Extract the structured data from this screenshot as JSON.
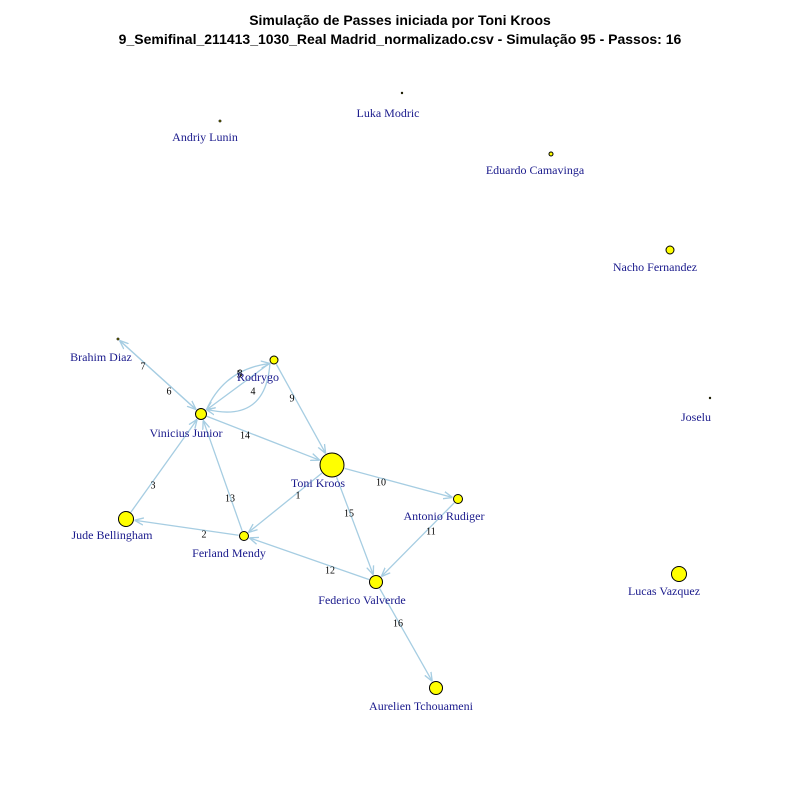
{
  "title": "Simulação de Passes iniciada por Toni Kroos",
  "subtitle": "9_Semifinal_211413_1030_Real Madrid_normalizado.csv - Simulação 95 - Passos: 16",
  "colors": {
    "node_fill": "#ffff00",
    "node_stroke": "#000000",
    "edge": "#a6cde2",
    "label": "#1a1a8c"
  },
  "nodes": [
    {
      "id": "toni-kroos",
      "label": "Toni Kroos"
    },
    {
      "id": "ferland-mendy",
      "label": "Ferland Mendy"
    },
    {
      "id": "jude-bellingham",
      "label": "Jude Bellingham"
    },
    {
      "id": "vinicius-junior",
      "label": "Vinicius Junior"
    },
    {
      "id": "rodrygo",
      "label": "Rodrygo"
    },
    {
      "id": "brahim-diaz",
      "label": "Brahim Diaz"
    },
    {
      "id": "antonio-rudiger",
      "label": "Antonio Rudiger"
    },
    {
      "id": "federico-valverde",
      "label": "Federico Valverde"
    },
    {
      "id": "aurelien-tchouameni",
      "label": "Aurelien Tchouameni"
    },
    {
      "id": "lucas-vazquez",
      "label": "Lucas Vazquez"
    },
    {
      "id": "joselu",
      "label": "Joselu"
    },
    {
      "id": "nacho-fernandez",
      "label": "Nacho Fernandez"
    },
    {
      "id": "eduardo-camavinga",
      "label": "Eduardo Camavinga"
    },
    {
      "id": "luka-modric",
      "label": "Luka Modric"
    },
    {
      "id": "andriy-lunin",
      "label": "Andriy Lunin"
    }
  ],
  "edges": [
    {
      "from": "toni-kroos",
      "to": "ferland-mendy",
      "step": "1"
    },
    {
      "from": "ferland-mendy",
      "to": "jude-bellingham",
      "step": "2"
    },
    {
      "from": "jude-bellingham",
      "to": "vinicius-junior",
      "step": "3"
    },
    {
      "from": "rodrygo",
      "to": "vinicius-junior",
      "step": "4"
    },
    {
      "from": "vinicius-junior",
      "to": "rodrygo",
      "step": "5"
    },
    {
      "from": "brahim-diaz",
      "to": "vinicius-junior",
      "step": "6"
    },
    {
      "from": "vinicius-junior",
      "to": "brahim-diaz",
      "step": "7"
    },
    {
      "from": "rodrygo",
      "to": "vinicius-junior",
      "step": "8"
    },
    {
      "from": "rodrygo",
      "to": "toni-kroos",
      "step": "9"
    },
    {
      "from": "toni-kroos",
      "to": "antonio-rudiger",
      "step": "10"
    },
    {
      "from": "antonio-rudiger",
      "to": "federico-valverde",
      "step": "11"
    },
    {
      "from": "federico-valverde",
      "to": "ferland-mendy",
      "step": "12"
    },
    {
      "from": "ferland-mendy",
      "to": "vinicius-junior",
      "step": "13"
    },
    {
      "from": "vinicius-junior",
      "to": "toni-kroos",
      "step": "14"
    },
    {
      "from": "toni-kroos",
      "to": "federico-valverde",
      "step": "15"
    },
    {
      "from": "federico-valverde",
      "to": "aurelien-tchouameni",
      "step": "16"
    }
  ]
}
